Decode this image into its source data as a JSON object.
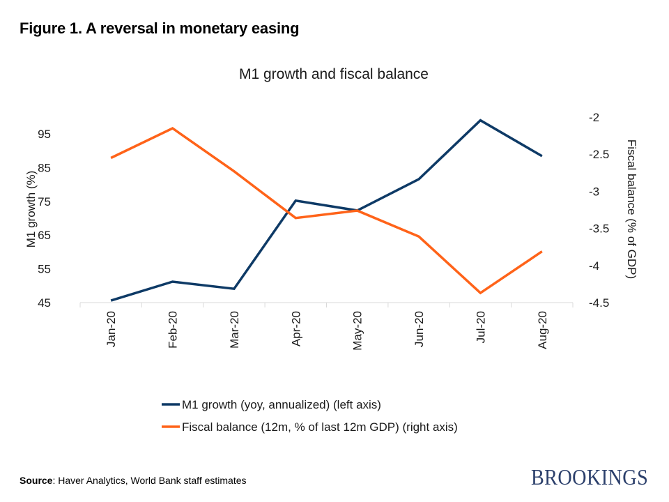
{
  "figure_title": "Figure 1. A reversal in monetary easing",
  "source": {
    "label": "Source",
    "text": ": Haver Analytics, World Bank staff estimates"
  },
  "logo": "BROOKINGS",
  "colors": {
    "m1": "#0e3a66",
    "fiscal": "#ff6319",
    "axis": "#d9d9d9",
    "text": "#1a1a1a"
  },
  "chart_data": {
    "type": "line",
    "title": "M1 growth and fiscal balance",
    "categories": [
      "Jan-20",
      "Feb-20",
      "Mar-20",
      "Apr-20",
      "May-20",
      "Jun-20",
      "Jul-20",
      "Aug-20"
    ],
    "series": [
      {
        "name": "M1 growth (yoy, annualized) (left axis)",
        "axis": "left",
        "values": [
          45.6,
          51.2,
          49.1,
          75.2,
          72.3,
          81.6,
          99.0,
          88.4
        ]
      },
      {
        "name": "Fiscal balance (12m, % of last 12m GDP) (right axis)",
        "axis": "right",
        "values": [
          -2.55,
          -2.15,
          -2.73,
          -3.36,
          -3.26,
          -3.61,
          -4.37,
          -3.81
        ]
      }
    ],
    "ylabel": "M1 growth (%)",
    "y2label": "Fiscal balance (% of GDP)",
    "xlabel": "",
    "ylim": [
      45,
      100
    ],
    "yticks": [
      45,
      55,
      65,
      75,
      85,
      95
    ],
    "y2lim": [
      -4.5,
      -2
    ],
    "y2ticks": [
      -2,
      -2.5,
      -3,
      -3.5,
      -4,
      -4.5
    ],
    "grid": false,
    "legend_position": "bottom"
  }
}
